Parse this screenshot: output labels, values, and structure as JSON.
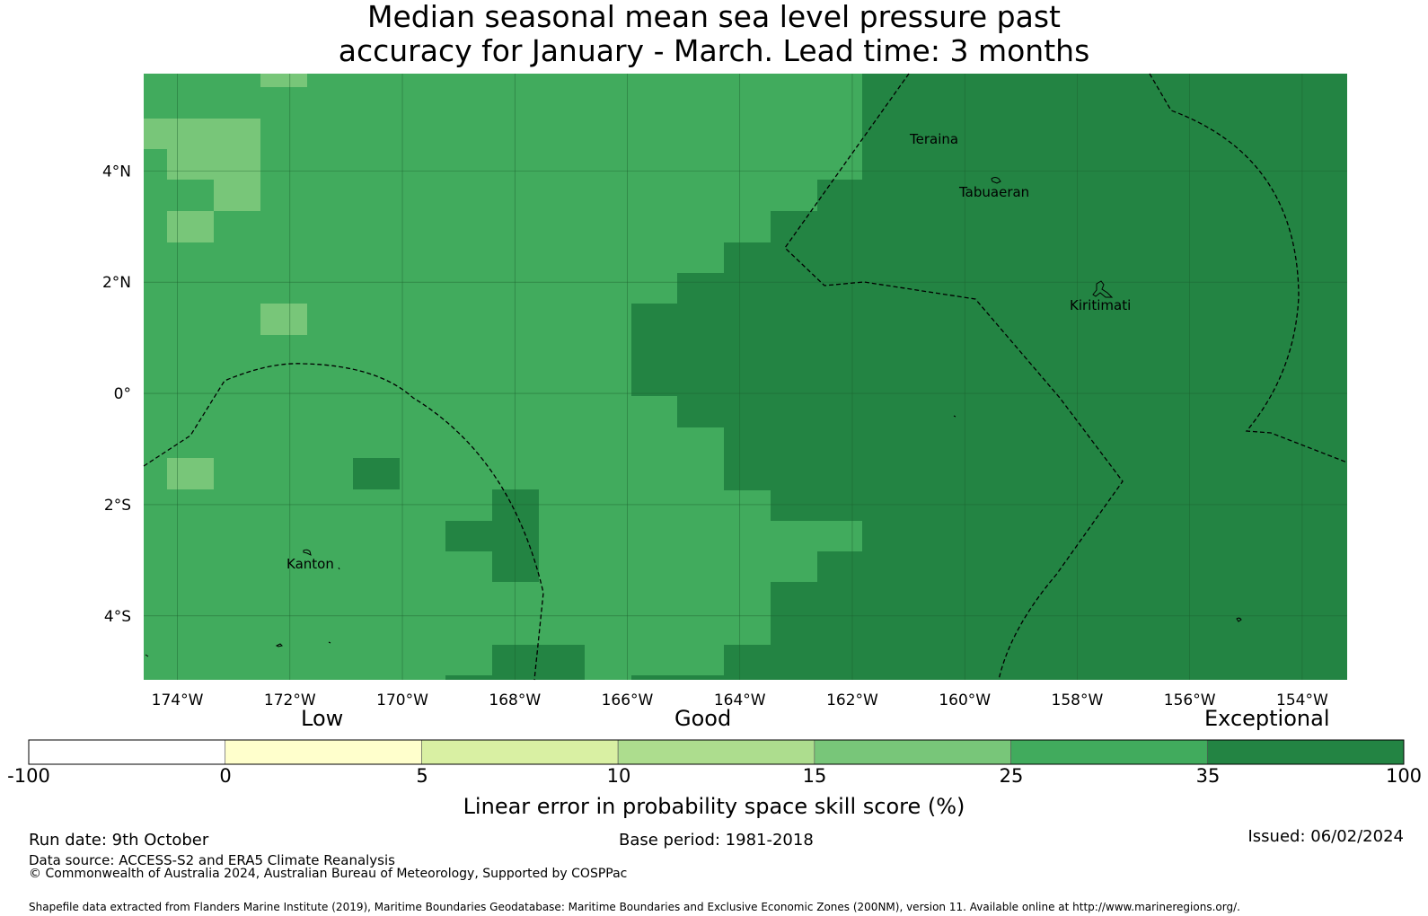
{
  "title": {
    "line1": "Median seasonal mean sea level pressure past",
    "line2": "accuracy for January - March. Lead time: 3 months"
  },
  "map": {
    "lon_range": [
      -174.6,
      -153.2
    ],
    "lat_range": [
      -5.15,
      5.75
    ],
    "lon_ticks": [
      -174,
      -172,
      -170,
      -168,
      -166,
      -164,
      -162,
      -160,
      -158,
      -156,
      -154
    ],
    "lon_labels": [
      "174°W",
      "172°W",
      "170°W",
      "168°W",
      "166°W",
      "164°W",
      "162°W",
      "160°W",
      "158°W",
      "156°W",
      "154°W"
    ],
    "lat_ticks": [
      4,
      2,
      0,
      -2,
      -4
    ],
    "lat_labels": [
      "4°N",
      "2°N",
      "0°",
      "2°S",
      "4°S"
    ],
    "places": [
      "Teraina",
      "Tabuaeran",
      "Kiritimati",
      "Kanton"
    ],
    "colors": {
      "band_15_25": "#78c679",
      "band_25_35": "#41ab5d",
      "band_35_100": "#238443",
      "gridline": "#1d5f2e",
      "boundary": "#000000"
    }
  },
  "colorbar": {
    "categories": [
      "Low",
      "Good",
      "Exceptional"
    ],
    "ticks": [
      "-100",
      "0",
      "5",
      "10",
      "15",
      "25",
      "35",
      "100"
    ],
    "colors": [
      "#ffffff",
      "#ffffcc",
      "#d9f0a3",
      "#addd8e",
      "#78c679",
      "#41ab5d",
      "#238443"
    ],
    "label": "Linear error in probability space skill score (%)"
  },
  "footer": {
    "run_date": "Run date: 9th October",
    "base_period": "Base period: 1981-2018",
    "issued": "Issued: 06/02/2024",
    "data_source": "Data source: ACCESS-S2 and ERA5 Climate Reanalysis",
    "copyright": "© Commonwealth of Australia 2024, Australian Bureau of Meteorology, Supported by COSPPac",
    "shapefile": "Shapefile data extracted from Flanders Marine Institute (2019), Maritime Boundaries Geodatabase: Maritime Boundaries and Exclusive Economic Zones (200NM), version 11. Available online at http://www.marineregions.org/."
  }
}
